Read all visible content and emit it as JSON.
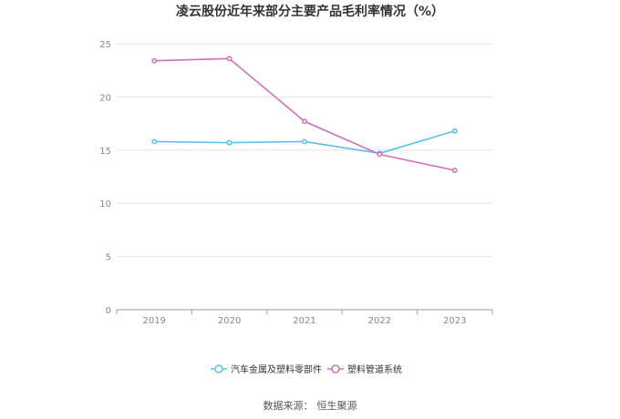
{
  "chart_data": {
    "type": "line",
    "title": "凌云股份近年来部分主要产品毛利率情况（%）",
    "categories": [
      "2019",
      "2020",
      "2021",
      "2022",
      "2023"
    ],
    "ylim": [
      0,
      25
    ],
    "yticks": [
      0,
      5,
      10,
      15,
      20,
      25
    ],
    "grid": true,
    "legend_position": "bottom",
    "series": [
      {
        "name": "汽车金属及塑料零部件",
        "color": "#5bc0eb",
        "values": [
          15.8,
          15.7,
          15.8,
          14.7,
          16.8
        ]
      },
      {
        "name": "塑料管道系统",
        "color": "#d16eb8",
        "values": [
          23.4,
          23.6,
          17.7,
          14.6,
          13.1
        ]
      }
    ]
  },
  "source": {
    "label": "数据来源：",
    "name": "恒生聚源"
  }
}
